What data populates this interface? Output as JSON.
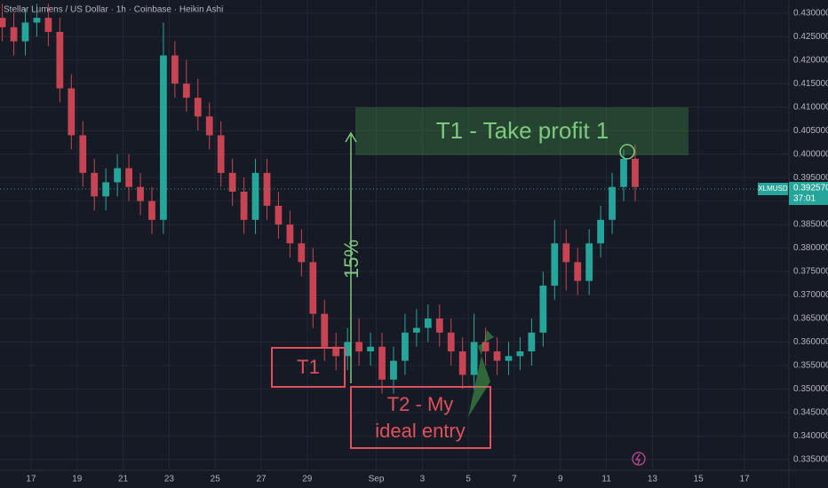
{
  "chart_data": {
    "type": "candlestick",
    "title": "Stellar Lumens / US Dollar · 1h · Coinbase · Heikin Ashi",
    "x": [
      -1.25,
      -0.75,
      -0.25,
      0.25,
      0.75,
      1.25,
      1.75,
      2.25,
      2.75,
      3.25,
      3.75,
      4.25,
      4.75,
      5.25,
      5.75,
      6.25,
      6.75,
      7.25,
      7.75,
      8.25,
      8.75,
      9.25,
      9.75,
      10.25,
      10.75,
      11.25,
      11.75,
      12.25,
      12.75,
      13.25,
      13.75,
      14.25,
      14.75,
      15.25,
      15.75,
      16.25,
      16.75,
      17.25,
      17.75,
      18.25,
      18.75,
      19.25,
      19.75,
      20.25,
      20.75,
      21.25,
      21.75,
      22.25,
      22.75,
      23.25,
      23.75,
      24.25,
      24.75,
      25.25,
      25.75,
      26.25
    ],
    "open": [
      0.429,
      0.427,
      0.424,
      0.428,
      0.429,
      0.426,
      0.414,
      0.404,
      0.396,
      0.391,
      0.394,
      0.397,
      0.393,
      0.39,
      0.386,
      0.421,
      0.415,
      0.412,
      0.408,
      0.404,
      0.396,
      0.392,
      0.386,
      0.396,
      0.389,
      0.385,
      0.381,
      0.377,
      0.366,
      0.359,
      0.357,
      0.36,
      0.358,
      0.359,
      0.352,
      0.356,
      0.362,
      0.363,
      0.365,
      0.362,
      0.358,
      0.353,
      0.36,
      0.358,
      0.356,
      0.357,
      0.358,
      0.362,
      0.372,
      0.381,
      0.377,
      0.373,
      0.381,
      0.386,
      0.393,
      0.399
    ],
    "high": [
      0.432,
      0.43,
      0.431,
      0.432,
      0.432,
      0.429,
      0.417,
      0.407,
      0.399,
      0.397,
      0.4,
      0.4,
      0.396,
      0.393,
      0.428,
      0.424,
      0.42,
      0.416,
      0.411,
      0.407,
      0.399,
      0.395,
      0.399,
      0.399,
      0.392,
      0.388,
      0.384,
      0.38,
      0.369,
      0.362,
      0.363,
      0.365,
      0.362,
      0.362,
      0.359,
      0.366,
      0.367,
      0.368,
      0.368,
      0.365,
      0.361,
      0.366,
      0.363,
      0.361,
      0.36,
      0.361,
      0.365,
      0.375,
      0.386,
      0.384,
      0.38,
      0.384,
      0.389,
      0.396,
      0.401,
      0.402
    ],
    "low": [
      0.424,
      0.421,
      0.421,
      0.425,
      0.423,
      0.411,
      0.401,
      0.393,
      0.388,
      0.388,
      0.391,
      0.39,
      0.387,
      0.383,
      0.383,
      0.412,
      0.409,
      0.405,
      0.401,
      0.393,
      0.389,
      0.383,
      0.383,
      0.386,
      0.382,
      0.378,
      0.374,
      0.363,
      0.356,
      0.354,
      0.354,
      0.355,
      0.355,
      0.349,
      0.349,
      0.353,
      0.359,
      0.36,
      0.359,
      0.355,
      0.35,
      0.35,
      0.355,
      0.353,
      0.353,
      0.354,
      0.355,
      0.359,
      0.369,
      0.371,
      0.37,
      0.37,
      0.378,
      0.383,
      0.39,
      0.39
    ],
    "close": [
      0.427,
      0.424,
      0.428,
      0.429,
      0.426,
      0.414,
      0.404,
      0.396,
      0.391,
      0.394,
      0.397,
      0.393,
      0.39,
      0.386,
      0.421,
      0.415,
      0.412,
      0.408,
      0.404,
      0.396,
      0.392,
      0.386,
      0.396,
      0.389,
      0.385,
      0.381,
      0.377,
      0.366,
      0.359,
      0.357,
      0.36,
      0.358,
      0.359,
      0.352,
      0.356,
      0.362,
      0.363,
      0.365,
      0.362,
      0.358,
      0.353,
      0.36,
      0.358,
      0.356,
      0.357,
      0.358,
      0.362,
      0.372,
      0.381,
      0.377,
      0.373,
      0.381,
      0.386,
      0.393,
      0.399,
      0.393
    ],
    "up_color": "#26a69a",
    "down_color": "#c84452",
    "xlim": [
      -1.35,
      32.93
    ],
    "xticks": [
      {
        "value": 0,
        "label": "17"
      },
      {
        "value": 2,
        "label": "19"
      },
      {
        "value": 4,
        "label": "21"
      },
      {
        "value": 6,
        "label": "23"
      },
      {
        "value": 8,
        "label": "25"
      },
      {
        "value": 10,
        "label": "27"
      },
      {
        "value": 12,
        "label": "29"
      },
      {
        "value": 15,
        "label": "Sep"
      },
      {
        "value": 17,
        "label": "3"
      },
      {
        "value": 19,
        "label": "5"
      },
      {
        "value": 21,
        "label": "7"
      },
      {
        "value": 23,
        "label": "9"
      },
      {
        "value": 25,
        "label": "11"
      },
      {
        "value": 27,
        "label": "13"
      },
      {
        "value": 29,
        "label": "15"
      },
      {
        "value": 31,
        "label": "17"
      }
    ],
    "ylim": [
      0.3327,
      0.4328
    ],
    "yticks": [
      {
        "value": 0.335,
        "label": "0.335000"
      },
      {
        "value": 0.34,
        "label": "0.340000"
      },
      {
        "value": 0.345,
        "label": "0.345000"
      },
      {
        "value": 0.35,
        "label": "0.350000"
      },
      {
        "value": 0.355,
        "label": "0.355000"
      },
      {
        "value": 0.36,
        "label": "0.360000"
      },
      {
        "value": 0.365,
        "label": "0.365000"
      },
      {
        "value": 0.37,
        "label": "0.370000"
      },
      {
        "value": 0.375,
        "label": "0.375000"
      },
      {
        "value": 0.38,
        "label": "0.380000"
      },
      {
        "value": 0.385,
        "label": "0.385000"
      },
      {
        "value": 0.39,
        "label": "0.390000"
      },
      {
        "value": 0.395,
        "label": "0.395000"
      },
      {
        "value": 0.4,
        "label": "0.400000"
      },
      {
        "value": 0.405,
        "label": "0.405000"
      },
      {
        "value": 0.41,
        "label": "0.410000"
      },
      {
        "value": 0.415,
        "label": "0.415000"
      },
      {
        "value": 0.42,
        "label": "0.420000"
      },
      {
        "value": 0.425,
        "label": "0.425000"
      },
      {
        "value": 0.43,
        "label": "0.430000"
      }
    ],
    "grid": true,
    "symbol": "XLMUSD",
    "last_price": {
      "value": 0.39257,
      "label": "0.392570"
    },
    "countdown": "37:01",
    "annotations": {
      "target": "T1 - Take profit 1",
      "move": "15%",
      "t1": "T1",
      "t2": [
        "T2 - My",
        "ideal entry"
      ]
    }
  }
}
